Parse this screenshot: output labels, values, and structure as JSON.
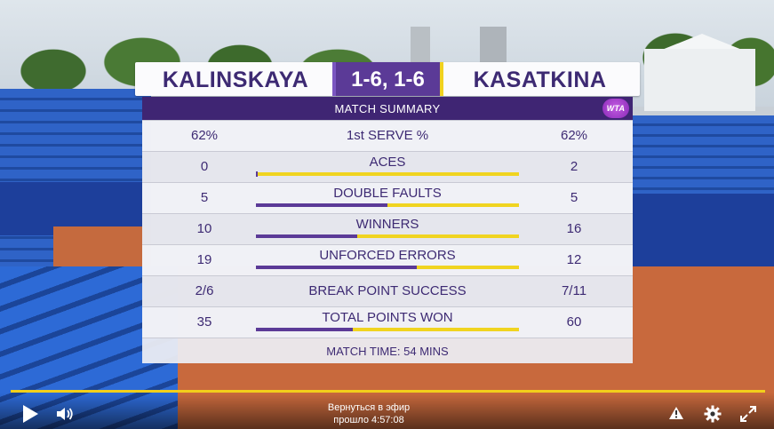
{
  "scoreboard": {
    "player_left": "KALINSKAYA",
    "player_right": "KASATKINA",
    "score": "1-6, 1-6",
    "section_title": "MATCH SUMMARY",
    "logo_text": "WTA",
    "colors": {
      "primary": "#3d2a73",
      "accent_purple": "#5b3a97",
      "accent_yellow": "#f1d21f"
    },
    "stats": [
      {
        "label": "1st SERVE %",
        "left": "62%",
        "right": "62%",
        "has_bar": false
      },
      {
        "label": "ACES",
        "left": "0",
        "right": "2",
        "has_bar": true,
        "left_share": 0.0
      },
      {
        "label": "DOUBLE FAULTS",
        "left": "5",
        "right": "5",
        "has_bar": true,
        "left_share": 0.5
      },
      {
        "label": "WINNERS",
        "left": "10",
        "right": "16",
        "has_bar": true,
        "left_share": 0.385
      },
      {
        "label": "UNFORCED ERRORS",
        "left": "19",
        "right": "12",
        "has_bar": true,
        "left_share": 0.613
      },
      {
        "label": "BREAK POINT SUCCESS",
        "left": "2/6",
        "right": "7/11",
        "has_bar": false
      },
      {
        "label": "TOTAL POINTS WON",
        "left": "35",
        "right": "60",
        "has_bar": true,
        "left_share": 0.368
      }
    ],
    "footer": "MATCH TIME: 54 MINS"
  },
  "player": {
    "live_line1": "Вернуться в эфир",
    "live_line2": "прошло 4:57:08",
    "progress_color": "#f2cf1b",
    "icons": [
      "play-icon",
      "volume-icon",
      "alert-icon",
      "gear-icon",
      "fullscreen-icon"
    ]
  }
}
